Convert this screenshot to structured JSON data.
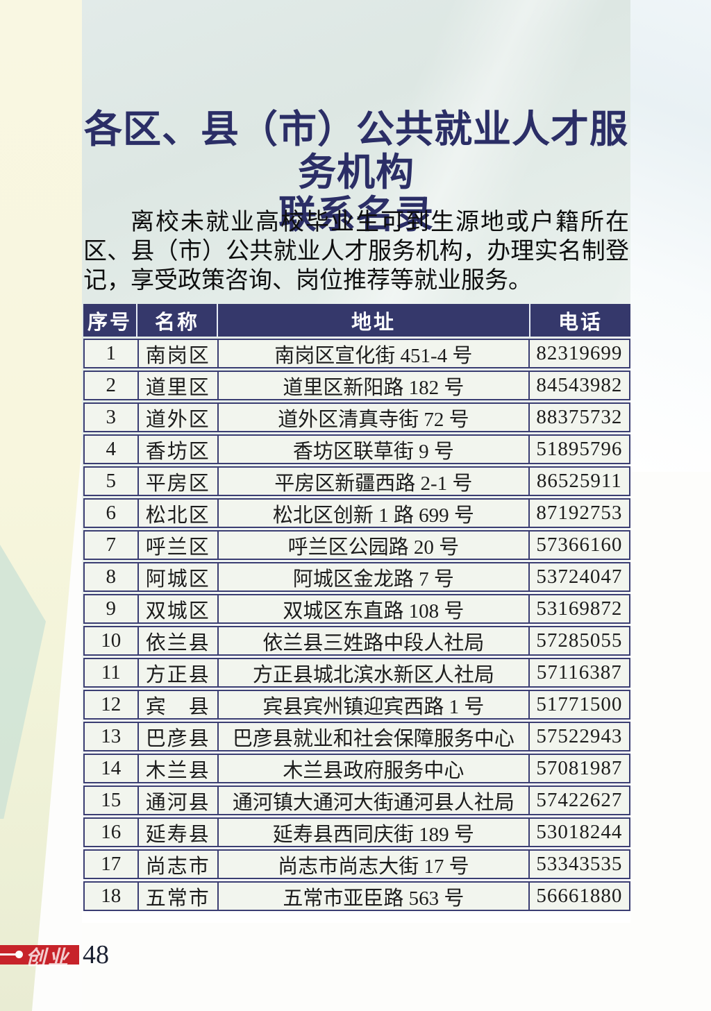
{
  "page": {
    "title_line1": "各区、县（市）公共就业人才服务机构",
    "title_line2": "联系名录",
    "intro": "离校未就业高校毕业生可到生源地或户籍所在区、县（市）公共就业人才服务机构，办理实名制登记，享受政策咨询、岗位推荐等就业服务。",
    "footer_logo_text": "创业",
    "page_number": "48"
  },
  "table": {
    "headers": [
      "序号",
      "名称",
      "地址",
      "电话"
    ],
    "rows": [
      {
        "no": "1",
        "name": "南岗区",
        "address": "南岗区宣化街 451-4 号",
        "phone": "82319699"
      },
      {
        "no": "2",
        "name": "道里区",
        "address": "道里区新阳路 182 号",
        "phone": "84543982"
      },
      {
        "no": "3",
        "name": "道外区",
        "address": "道外区清真寺街 72 号",
        "phone": "88375732"
      },
      {
        "no": "4",
        "name": "香坊区",
        "address": "香坊区联草街 9 号",
        "phone": "51895796"
      },
      {
        "no": "5",
        "name": "平房区",
        "address": "平房区新疆西路 2-1 号",
        "phone": "86525911"
      },
      {
        "no": "6",
        "name": "松北区",
        "address": "松北区创新 1 路 699 号",
        "phone": "87192753"
      },
      {
        "no": "7",
        "name": "呼兰区",
        "address": "呼兰区公园路 20 号",
        "phone": "57366160"
      },
      {
        "no": "8",
        "name": "阿城区",
        "address": "阿城区金龙路 7 号",
        "phone": "53724047"
      },
      {
        "no": "9",
        "name": "双城区",
        "address": "双城区东直路 108 号",
        "phone": "53169872"
      },
      {
        "no": "10",
        "name": "依兰县",
        "address": "依兰县三姓路中段人社局",
        "phone": "57285055"
      },
      {
        "no": "11",
        "name": "方正县",
        "address": "方正县城北滨水新区人社局",
        "phone": "57116387"
      },
      {
        "no": "12",
        "name": "宾　县",
        "address": "宾县宾州镇迎宾西路 1 号",
        "phone": "51771500"
      },
      {
        "no": "13",
        "name": "巴彦县",
        "address": "巴彦县就业和社会保障服务中心",
        "phone": "57522943"
      },
      {
        "no": "14",
        "name": "木兰县",
        "address": "木兰县政府服务中心",
        "phone": "57081987"
      },
      {
        "no": "15",
        "name": "通河县",
        "address": "通河镇大通河大街通河县人社局",
        "phone": "57422627"
      },
      {
        "no": "16",
        "name": "延寿县",
        "address": "延寿县西同庆街 189 号",
        "phone": "53018244"
      },
      {
        "no": "17",
        "name": "尚志市",
        "address": "尚志市尚志大街 17 号",
        "phone": "53343535"
      },
      {
        "no": "18",
        "name": "五常市",
        "address": "五常市亚臣路 563 号",
        "phone": "56661880"
      }
    ]
  },
  "colors": {
    "header_navy": "#35386b",
    "border_navy": "#3a3d72",
    "title_navy": "#2b2e66",
    "cell_bg": "#f2f5ee",
    "banner_red": "#c7232a",
    "band_yellow": "#f8f6de",
    "panel_green": "#e2ebe9"
  }
}
